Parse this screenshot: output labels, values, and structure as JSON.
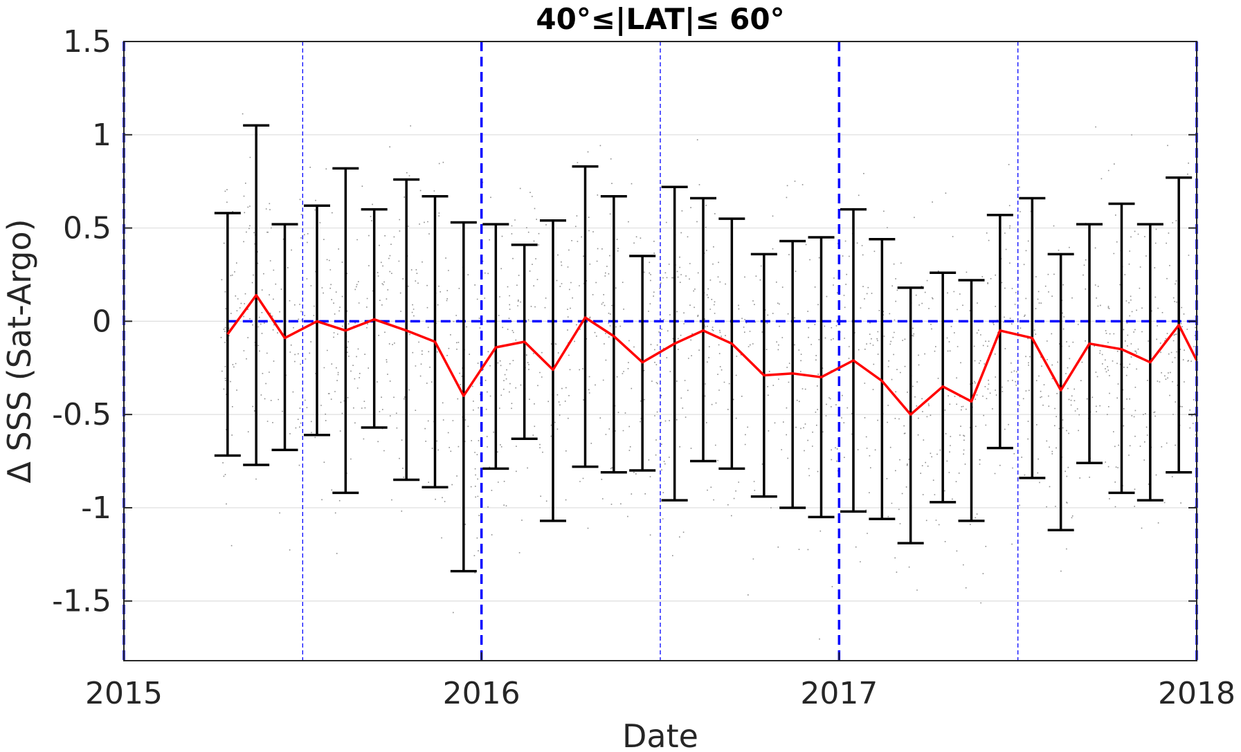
{
  "chart_data": {
    "type": "scatter",
    "title": "40°≤|LAT|≤ 60°",
    "xlabel": "Date",
    "ylabel": "Δ SSS (Sat-Argo)",
    "xlim": [
      2015.0,
      2018.0
    ],
    "ylim": [
      -1.82,
      1.5
    ],
    "x_ticks": [
      2015,
      2016,
      2017,
      2018
    ],
    "x_tick_labels": [
      "2015",
      "2016",
      "2017",
      "2018"
    ],
    "y_ticks": [
      1.5,
      1,
      0.5,
      0,
      -0.5,
      -1,
      -1.5
    ],
    "y_tick_labels": [
      "1.5",
      "1",
      "0.5",
      "0",
      "-0.5",
      "-1",
      "-1.5"
    ],
    "grid": "horizontal",
    "colors": {
      "mean_line": "#ff0000",
      "error_bars": "#000000",
      "reference_lines": "#0000ff",
      "scatter": "#808080"
    },
    "year_lines": [
      2015.0,
      2016.0,
      2017.0,
      2018.0
    ],
    "half_year_lines": [
      2015.5,
      2016.5,
      2017.5
    ],
    "zero_line": {
      "y": 0,
      "x_range": [
        2015.29,
        2018.0
      ]
    },
    "series": [
      {
        "kind": "monthly mean with error bars",
        "x": [
          2015.29,
          2015.37,
          2015.45,
          2015.54,
          2015.62,
          2015.7,
          2015.79,
          2015.87,
          2015.95,
          2016.04,
          2016.12,
          2016.2,
          2016.29,
          2016.37,
          2016.45,
          2016.54,
          2016.62,
          2016.7,
          2016.79,
          2016.87,
          2016.95,
          2017.04,
          2017.12,
          2017.2,
          2017.29,
          2017.37,
          2017.45,
          2017.54,
          2017.62,
          2017.7,
          2017.79,
          2017.87,
          2017.95,
          2018.0
        ],
        "mean": [
          -0.07,
          0.14,
          -0.09,
          0.0,
          -0.05,
          0.01,
          -0.05,
          -0.11,
          -0.4,
          -0.14,
          -0.11,
          -0.26,
          0.02,
          -0.08,
          -0.22,
          -0.12,
          -0.05,
          -0.12,
          -0.29,
          -0.28,
          -0.3,
          -0.21,
          -0.32,
          -0.5,
          -0.35,
          -0.43,
          -0.05,
          -0.09,
          -0.37,
          -0.12,
          -0.15,
          -0.22,
          -0.02,
          -0.21
        ],
        "upper": [
          0.58,
          1.05,
          0.52,
          0.62,
          0.82,
          0.6,
          0.76,
          0.67,
          0.53,
          0.52,
          0.41,
          0.54,
          0.83,
          0.67,
          0.35,
          0.72,
          0.66,
          0.55,
          0.36,
          0.43,
          0.45,
          0.6,
          0.44,
          0.18,
          0.26,
          0.22,
          0.57,
          0.66,
          0.36,
          0.52,
          0.63,
          0.52,
          0.77,
          null
        ],
        "lower": [
          -0.72,
          -0.77,
          -0.69,
          -0.61,
          -0.92,
          -0.57,
          -0.85,
          -0.89,
          -1.34,
          -0.79,
          -0.63,
          -1.07,
          -0.78,
          -0.81,
          -0.8,
          -0.96,
          -0.75,
          -0.79,
          -0.94,
          -1.0,
          -1.05,
          -1.02,
          -1.06,
          -1.19,
          -0.97,
          -1.07,
          -0.68,
          -0.84,
          -1.12,
          -0.76,
          -0.92,
          -0.96,
          -0.81,
          null
        ]
      }
    ]
  }
}
